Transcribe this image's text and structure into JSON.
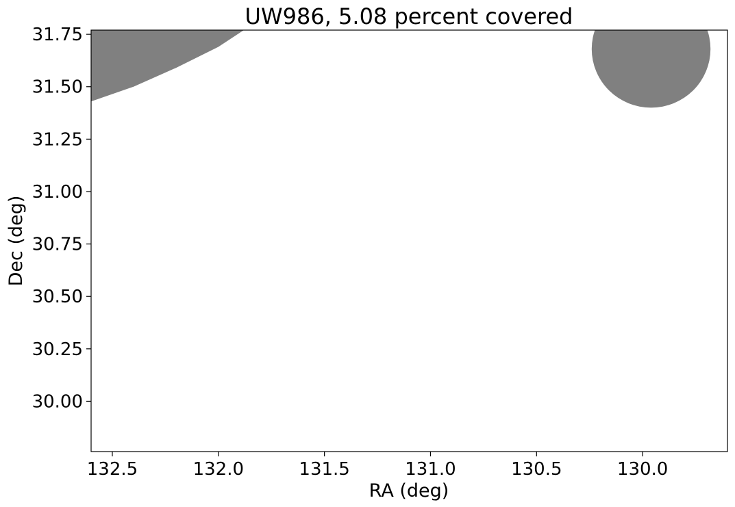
{
  "chart_data": {
    "type": "area",
    "title": "UW986, 5.08 percent covered",
    "xlabel": "RA (deg)",
    "ylabel": "Dec (deg)",
    "xlim": [
      132.6,
      129.6
    ],
    "ylim": [
      29.76,
      31.77
    ],
    "x_inverted": true,
    "x_ticks": [
      132.5,
      132.0,
      131.5,
      131.0,
      130.5,
      130.0
    ],
    "x_tick_labels": [
      "132.5",
      "132.0",
      "131.5",
      "131.0",
      "130.5",
      "130.0"
    ],
    "y_ticks": [
      30.0,
      30.25,
      30.5,
      30.75,
      31.0,
      31.25,
      31.5,
      31.75
    ],
    "y_tick_labels": [
      "30.00",
      "30.25",
      "30.50",
      "30.75",
      "31.00",
      "31.25",
      "31.50",
      "31.75"
    ],
    "grid": false,
    "fill_color": "#808080",
    "regions": [
      {
        "shape": "polygon",
        "points": [
          [
            132.6,
            31.43
          ],
          [
            132.4,
            31.5
          ],
          [
            132.2,
            31.59
          ],
          [
            132.0,
            31.69
          ],
          [
            131.88,
            31.77
          ],
          [
            132.6,
            31.77
          ]
        ]
      },
      {
        "shape": "ellipse",
        "center": [
          129.96,
          31.68
        ],
        "radius_ra": 0.28,
        "radius_dec": 0.28
      }
    ]
  }
}
